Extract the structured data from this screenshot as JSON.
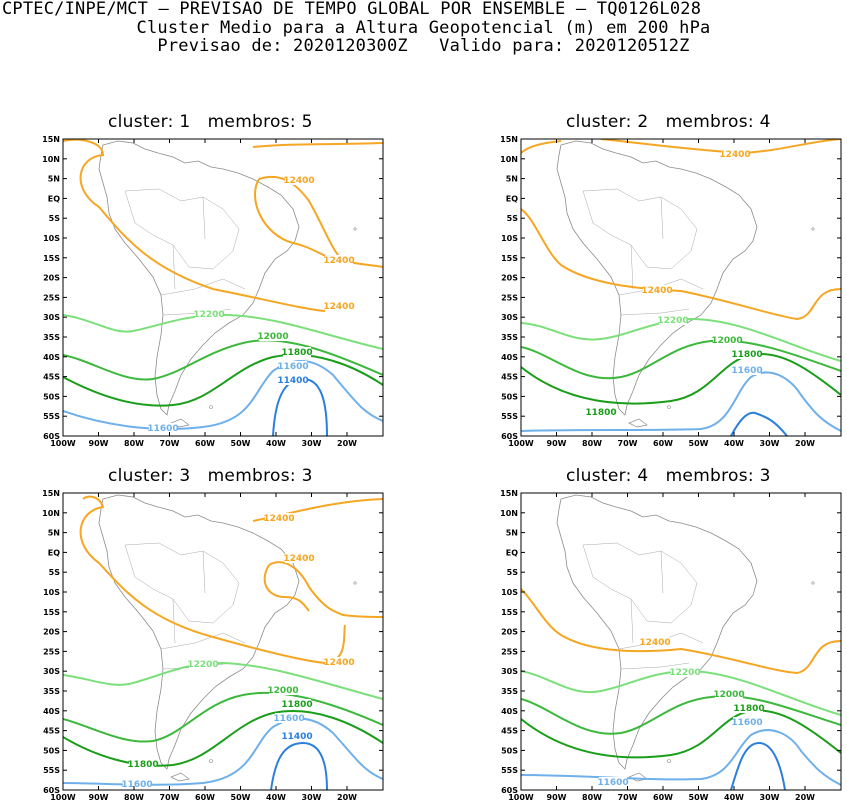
{
  "header": {
    "line1": "CPTEC/INPE/MCT — PREVISAO DE TEMPO GLOBAL POR ENSEMBLE — TQ0126L028",
    "line2": "Cluster Medio para a Altura Geopotencial (m) em 200 hPa",
    "line3": "Previsao de: 2020120300Z   Valido para: 2020120512Z"
  },
  "axes": {
    "lat_labels": [
      "15N",
      "10N",
      "5N",
      "EQ",
      "5S",
      "10S",
      "15S",
      "20S",
      "25S",
      "30S",
      "35S",
      "40S",
      "45S",
      "50S",
      "55S",
      "60S"
    ],
    "lon_labels": [
      "100W",
      "90W",
      "80W",
      "70W",
      "60W",
      "50W",
      "40W",
      "30W",
      "20W"
    ]
  },
  "colors": {
    "c12400": "#f5a623",
    "c12200": "#7be07b",
    "c12000": "#3cb83c",
    "c11800": "#1a9e1a",
    "c11600": "#6fb0ea",
    "c11400": "#2a7fdc",
    "coast": "#8c8c8c"
  },
  "panels": [
    {
      "title": "cluster: 1   membros: 5",
      "labels": [
        "12400",
        "12400",
        "12400",
        "12200",
        "12000",
        "11800",
        "11600",
        "11400",
        "11600"
      ]
    },
    {
      "title": "cluster: 2   membros: 4",
      "labels": [
        "12400",
        "12400",
        "12200",
        "12000",
        "11800",
        "11600",
        "11800"
      ]
    },
    {
      "title": "cluster: 3   membros: 3",
      "labels": [
        "12400",
        "12400",
        "12400",
        "12200",
        "12000",
        "11800",
        "11600",
        "11400",
        "11800",
        "11600"
      ]
    },
    {
      "title": "cluster: 4   membros: 3",
      "labels": [
        "12400",
        "12200",
        "12000",
        "11800",
        "11600",
        "11600"
      ]
    }
  ]
}
